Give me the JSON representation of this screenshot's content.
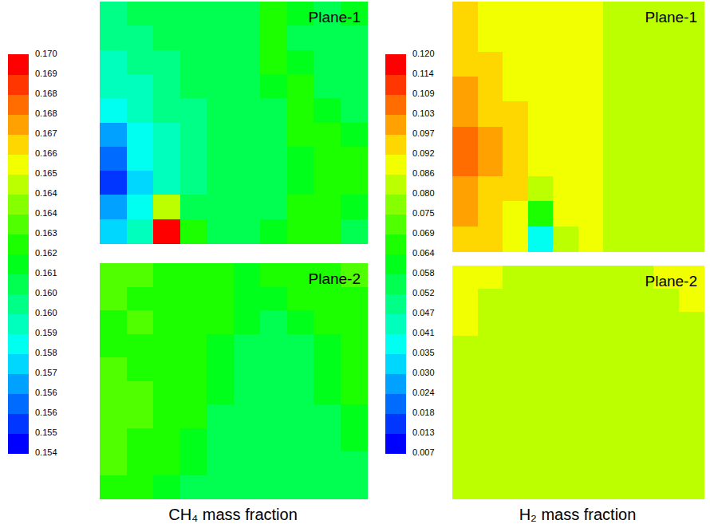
{
  "chart_data": [
    {
      "type": "heatmap",
      "title": "CH₄ mass fraction",
      "colorbar_range": [
        0.154,
        0.17
      ],
      "colorbar_ticks": [
        0.154,
        {
          "value": 0.1548,
          "label": "0.155"
        },
        {
          "value": 0.1556,
          "label": "0.156"
        },
        {
          "value": 0.1564,
          "label": "0.156"
        },
        {
          "value": 0.1572,
          "label": "0.157"
        },
        0.158,
        {
          "value": 0.1588,
          "label": "0.159"
        },
        {
          "value": 0.1596,
          "label": "0.160"
        },
        {
          "value": 0.1604,
          "label": "0.160"
        },
        {
          "value": 0.1612,
          "label": "0.161"
        },
        0.162,
        {
          "value": 0.1628,
          "label": "0.163"
        },
        {
          "value": 0.1636,
          "label": "0.164"
        },
        {
          "value": 0.1644,
          "label": "0.164"
        },
        {
          "value": 0.1652,
          "label": "0.165"
        },
        0.166,
        {
          "value": 0.1668,
          "label": "0.167"
        },
        {
          "value": 0.1676,
          "label": "0.168"
        },
        {
          "value": 0.1684,
          "label": "0.168"
        },
        {
          "value": 0.1692,
          "label": "0.169"
        },
        {
          "value": 0.17,
          "label": "0.170"
        }
      ],
      "panels": [
        {
          "label": "Plane-1",
          "cells": [
            [
              0.16,
              0.1605,
              0.1605,
              0.161,
              0.161,
              0.161,
              0.162,
              0.1615,
              0.161,
              0.1615
            ],
            [
              0.16,
              0.16,
              0.1605,
              0.161,
              0.161,
              0.161,
              0.162,
              0.161,
              0.161,
              0.161
            ],
            [
              0.1595,
              0.16,
              0.16,
              0.1605,
              0.161,
              0.161,
              0.162,
              0.1615,
              0.161,
              0.161
            ],
            [
              0.159,
              0.1595,
              0.16,
              0.1605,
              0.1605,
              0.161,
              0.1615,
              0.162,
              0.161,
              0.161
            ],
            [
              0.158,
              0.159,
              0.16,
              0.16,
              0.1605,
              0.161,
              0.161,
              0.162,
              0.1615,
              0.161
            ],
            [
              0.157,
              0.1585,
              0.1595,
              0.16,
              0.1605,
              0.161,
              0.161,
              0.162,
              0.162,
              0.1615
            ],
            [
              0.156,
              0.158,
              0.159,
              0.16,
              0.161,
              0.161,
              0.161,
              0.1615,
              0.1625,
              0.162
            ],
            [
              0.1555,
              0.1575,
              0.1595,
              0.16,
              0.1605,
              0.161,
              0.161,
              0.1615,
              0.1625,
              0.162
            ],
            [
              0.1565,
              0.158,
              0.165,
              0.161,
              0.161,
              0.1605,
              0.161,
              0.162,
              0.1625,
              0.1615
            ],
            [
              0.1575,
              0.159,
              0.1695,
              0.162,
              0.161,
              0.161,
              0.1615,
              0.162,
              0.162,
              0.161
            ]
          ]
        },
        {
          "label": "Plane-2",
          "cells": [
            [
              0.163,
              0.163,
              0.1625,
              0.1625,
              0.162,
              0.1615,
              0.162,
              0.162,
              0.1625,
              0.163
            ],
            [
              0.163,
              0.1625,
              0.1625,
              0.162,
              0.162,
              0.1615,
              0.1615,
              0.162,
              0.162,
              0.1625
            ],
            [
              0.1625,
              0.163,
              0.1625,
              0.162,
              0.162,
              0.1615,
              0.161,
              0.1615,
              0.162,
              0.1625
            ],
            [
              0.1625,
              0.1625,
              0.1625,
              0.162,
              0.1615,
              0.161,
              0.161,
              0.161,
              0.1615,
              0.162
            ],
            [
              0.163,
              0.1625,
              0.1625,
              0.162,
              0.1615,
              0.161,
              0.161,
              0.161,
              0.1615,
              0.162
            ],
            [
              0.1635,
              0.163,
              0.1625,
              0.162,
              0.1615,
              0.161,
              0.1605,
              0.161,
              0.1615,
              0.162
            ],
            [
              0.1635,
              0.163,
              0.1625,
              0.162,
              0.161,
              0.1605,
              0.1605,
              0.161,
              0.161,
              0.1615
            ],
            [
              0.1635,
              0.1625,
              0.162,
              0.1615,
              0.161,
              0.1605,
              0.1605,
              0.1605,
              0.161,
              0.1615
            ],
            [
              0.163,
              0.1625,
              0.162,
              0.1615,
              0.161,
              0.1605,
              0.1605,
              0.1605,
              0.161,
              0.161
            ],
            [
              0.1625,
              0.162,
              0.1615,
              0.161,
              0.161,
              0.1605,
              0.161,
              0.161,
              0.161,
              0.161
            ]
          ]
        }
      ]
    },
    {
      "type": "heatmap",
      "title": "H₂ mass fraction",
      "colorbar_range": [
        0.007,
        0.12
      ],
      "colorbar_ticks": [
        0.007,
        {
          "value": 0.01265,
          "label": "0.013"
        },
        {
          "value": 0.0183,
          "label": "0.018"
        },
        {
          "value": 0.02395,
          "label": "0.024"
        },
        {
          "value": 0.0296,
          "label": "0.030"
        },
        {
          "value": 0.03525,
          "label": "0.035"
        },
        {
          "value": 0.0409,
          "label": "0.041"
        },
        {
          "value": 0.04655,
          "label": "0.047"
        },
        {
          "value": 0.0522,
          "label": "0.052"
        },
        {
          "value": 0.05785,
          "label": "0.058"
        },
        {
          "value": 0.0635,
          "label": "0.064"
        },
        {
          "value": 0.06915,
          "label": "0.069"
        },
        {
          "value": 0.0748,
          "label": "0.075"
        },
        {
          "value": 0.08045,
          "label": "0.080"
        },
        {
          "value": 0.0861,
          "label": "0.086"
        },
        {
          "value": 0.09175,
          "label": "0.092"
        },
        {
          "value": 0.0974,
          "label": "0.097"
        },
        {
          "value": 0.10305,
          "label": "0.103"
        },
        {
          "value": 0.1087,
          "label": "0.109"
        },
        {
          "value": 0.11435,
          "label": "0.114"
        },
        {
          "value": 0.12,
          "label": "0.120"
        }
      ],
      "panels": [
        {
          "label": "Plane-1",
          "cells": [
            [
              0.092,
              0.091,
              0.09,
              0.089,
              0.088,
              0.087,
              0.086,
              0.086,
              0.085,
              0.085
            ],
            [
              0.093,
              0.091,
              0.09,
              0.089,
              0.088,
              0.087,
              0.086,
              0.085,
              0.085,
              0.084
            ],
            [
              0.095,
              0.092,
              0.09,
              0.089,
              0.088,
              0.087,
              0.086,
              0.085,
              0.084,
              0.084
            ],
            [
              0.098,
              0.094,
              0.091,
              0.089,
              0.088,
              0.087,
              0.086,
              0.085,
              0.084,
              0.084
            ],
            [
              0.102,
              0.097,
              0.092,
              0.09,
              0.088,
              0.087,
              0.086,
              0.085,
              0.084,
              0.084
            ],
            [
              0.104,
              0.099,
              0.093,
              0.09,
              0.088,
              0.087,
              0.086,
              0.085,
              0.084,
              0.084
            ],
            [
              0.104,
              0.099,
              0.093,
              0.089,
              0.088,
              0.087,
              0.086,
              0.085,
              0.084,
              0.084
            ],
            [
              0.102,
              0.097,
              0.092,
              0.086,
              0.088,
              0.087,
              0.086,
              0.085,
              0.084,
              0.084
            ],
            [
              0.099,
              0.095,
              0.091,
              0.066,
              0.087,
              0.087,
              0.086,
              0.084,
              0.084,
              0.084
            ],
            [
              0.096,
              0.093,
              0.09,
              0.038,
              0.086,
              0.087,
              0.086,
              0.084,
              0.084,
              0.084
            ]
          ]
        },
        {
          "label": "Plane-2",
          "cells": [
            [
              0.087,
              0.087,
              0.086,
              0.086,
              0.086,
              0.086,
              0.086,
              0.086,
              0.087,
              0.087
            ],
            [
              0.087,
              0.086,
              0.086,
              0.085,
              0.086,
              0.086,
              0.086,
              0.086,
              0.086,
              0.087
            ],
            [
              0.087,
              0.086,
              0.086,
              0.085,
              0.085,
              0.086,
              0.086,
              0.085,
              0.086,
              0.086
            ],
            [
              0.086,
              0.086,
              0.085,
              0.085,
              0.085,
              0.086,
              0.085,
              0.085,
              0.086,
              0.086
            ],
            [
              0.086,
              0.086,
              0.085,
              0.085,
              0.085,
              0.086,
              0.085,
              0.085,
              0.086,
              0.086
            ],
            [
              0.086,
              0.085,
              0.085,
              0.085,
              0.085,
              0.085,
              0.085,
              0.084,
              0.085,
              0.086
            ],
            [
              0.086,
              0.085,
              0.085,
              0.085,
              0.085,
              0.085,
              0.085,
              0.084,
              0.085,
              0.085
            ],
            [
              0.086,
              0.085,
              0.085,
              0.084,
              0.085,
              0.085,
              0.085,
              0.084,
              0.085,
              0.085
            ],
            [
              0.085,
              0.085,
              0.085,
              0.084,
              0.085,
              0.085,
              0.084,
              0.084,
              0.085,
              0.085
            ],
            [
              0.085,
              0.085,
              0.084,
              0.084,
              0.085,
              0.085,
              0.084,
              0.084,
              0.085,
              0.085
            ]
          ]
        }
      ]
    }
  ]
}
